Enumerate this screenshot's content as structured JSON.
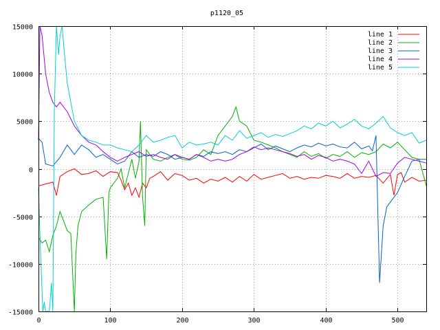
{
  "chart_data": {
    "type": "line",
    "title": "p1120_05",
    "xlabel": "",
    "ylabel": "",
    "xlim": [
      0,
      540
    ],
    "ylim": [
      -15000,
      15000
    ],
    "xticks": [
      0,
      100,
      200,
      300,
      400,
      500
    ],
    "yticks": [
      -15000,
      -10000,
      -5000,
      0,
      5000,
      10000,
      15000
    ],
    "grid": true,
    "legend_position": "top-right",
    "series": [
      {
        "name": "line 1",
        "color": "#ff0000",
        "x": [
          0,
          10,
          20,
          25,
          30,
          40,
          50,
          60,
          70,
          80,
          90,
          100,
          110,
          115,
          120,
          125,
          130,
          135,
          140,
          145,
          150,
          155,
          160,
          170,
          180,
          190,
          200,
          210,
          220,
          230,
          240,
          250,
          260,
          270,
          280,
          290,
          300,
          310,
          320,
          330,
          340,
          350,
          360,
          370,
          380,
          390,
          400,
          410,
          420,
          430,
          440,
          450,
          460,
          470,
          480,
          490,
          495,
          500,
          505,
          510,
          520,
          530,
          540
        ],
        "y": [
          -1800,
          -1600,
          -1400,
          -2800,
          -800,
          -300,
          0,
          -600,
          -500,
          -200,
          -800,
          -300,
          -400,
          -1200,
          -2200,
          -1500,
          -2800,
          -2000,
          -3000,
          -1500,
          -2000,
          -1000,
          -800,
          -300,
          -1200,
          -500,
          -700,
          -1200,
          -1000,
          -1500,
          -1100,
          -1300,
          -900,
          -1400,
          -800,
          -1300,
          -600,
          -1100,
          -900,
          -700,
          -500,
          -1000,
          -800,
          -1100,
          -900,
          -1000,
          -700,
          -800,
          -1000,
          -500,
          -1000,
          -800,
          -900,
          -700,
          -1500,
          -600,
          -2800,
          -600,
          -400,
          -1400,
          -900,
          -1300,
          -1200
        ]
      },
      {
        "name": "line 2",
        "color": "#00b000",
        "x": [
          0,
          5,
          10,
          15,
          20,
          25,
          30,
          35,
          40,
          45,
          50,
          52,
          55,
          60,
          70,
          80,
          90,
          95,
          98,
          100,
          110,
          115,
          120,
          130,
          135,
          140,
          142,
          145,
          148,
          150,
          155,
          160,
          170,
          180,
          190,
          200,
          210,
          220,
          230,
          240,
          250,
          260,
          270,
          275,
          280,
          290,
          300,
          310,
          320,
          330,
          340,
          350,
          360,
          370,
          380,
          390,
          400,
          410,
          420,
          430,
          440,
          450,
          460,
          470,
          480,
          490,
          500,
          510,
          520,
          530,
          540
        ],
        "y": [
          -7200,
          -7800,
          -7500,
          -8700,
          -7000,
          -6000,
          -4500,
          -5500,
          -6500,
          -6800,
          -15000,
          -9000,
          -6000,
          -4500,
          -3800,
          -3200,
          -3000,
          -9500,
          -2500,
          -2000,
          -1000,
          0,
          -2000,
          1000,
          -1000,
          800,
          5000,
          -3000,
          -6000,
          2000,
          1500,
          1000,
          800,
          1200,
          1500,
          1000,
          900,
          1200,
          2000,
          1500,
          3500,
          4500,
          5500,
          6500,
          5000,
          4500,
          3000,
          2800,
          2500,
          2200,
          1800,
          1500,
          1200,
          1800,
          1300,
          1600,
          1100,
          1500,
          1300,
          1800,
          1200,
          1700,
          1500,
          1800,
          2600,
          2200,
          2800,
          2000,
          1200,
          1000,
          -1800
        ]
      },
      {
        "name": "line 3",
        "color": "#0060d0",
        "x": [
          0,
          5,
          10,
          20,
          30,
          40,
          50,
          60,
          70,
          80,
          90,
          100,
          110,
          120,
          130,
          140,
          150,
          160,
          170,
          180,
          190,
          200,
          210,
          220,
          230,
          240,
          250,
          260,
          270,
          280,
          290,
          300,
          310,
          320,
          330,
          340,
          350,
          360,
          370,
          380,
          390,
          400,
          410,
          420,
          430,
          440,
          450,
          460,
          465,
          470,
          475,
          480,
          485,
          490,
          500,
          510,
          520,
          530,
          540
        ],
        "y": [
          3200,
          2800,
          500,
          300,
          1200,
          2500,
          1500,
          2500,
          2000,
          1200,
          1500,
          1000,
          500,
          800,
          1800,
          1200,
          1500,
          1300,
          1800,
          1500,
          1000,
          1200,
          1000,
          1500,
          1300,
          1800,
          1600,
          1800,
          1500,
          2000,
          1800,
          2200,
          2600,
          2000,
          2400,
          2100,
          1800,
          2200,
          2500,
          2300,
          2700,
          2400,
          2600,
          2300,
          2200,
          2800,
          2100,
          2400,
          1900,
          3500,
          -12000,
          -6000,
          -4000,
          -3500,
          -2500,
          -800,
          800,
          1000,
          1000
        ]
      },
      {
        "name": "line 4",
        "color": "#a000e0",
        "x": [
          0,
          2,
          5,
          10,
          15,
          20,
          25,
          30,
          40,
          50,
          60,
          70,
          80,
          90,
          100,
          110,
          120,
          130,
          140,
          150,
          160,
          170,
          180,
          190,
          200,
          210,
          220,
          230,
          240,
          250,
          260,
          270,
          280,
          290,
          300,
          310,
          320,
          330,
          340,
          350,
          360,
          370,
          380,
          390,
          400,
          410,
          420,
          430,
          440,
          450,
          460,
          470,
          480,
          490,
          500,
          510,
          520,
          530,
          540
        ],
        "y": [
          3000,
          15000,
          14000,
          10000,
          8000,
          7000,
          6500,
          7000,
          6000,
          4500,
          3500,
          2800,
          2500,
          1800,
          1200,
          800,
          1200,
          1500,
          1800,
          1300,
          1500,
          1200,
          1000,
          1500,
          1200,
          1000,
          1500,
          1200,
          800,
          1000,
          800,
          1000,
          1500,
          1800,
          2300,
          2000,
          2200,
          2000,
          1800,
          1600,
          1300,
          1500,
          1000,
          1400,
          1200,
          800,
          1000,
          800,
          500,
          -500,
          800,
          -800,
          -400,
          -500,
          600,
          1200,
          1000,
          800,
          600
        ]
      },
      {
        "name": "line 5",
        "color": "#00d0d0",
        "x": [
          0,
          3,
          6,
          8,
          10,
          12,
          15,
          18,
          20,
          22,
          25,
          28,
          30,
          33,
          35,
          40,
          50,
          60,
          70,
          80,
          90,
          100,
          110,
          120,
          130,
          140,
          150,
          160,
          170,
          180,
          190,
          200,
          210,
          220,
          230,
          240,
          250,
          260,
          270,
          280,
          290,
          300,
          310,
          320,
          330,
          340,
          350,
          360,
          370,
          380,
          390,
          400,
          410,
          420,
          430,
          440,
          450,
          460,
          470,
          480,
          490,
          500,
          510,
          520,
          530,
          540
        ],
        "y": [
          -2000,
          -9000,
          -15000,
          -14000,
          -15000,
          -15000,
          -15000,
          -12000,
          -15000,
          6000,
          15000,
          12000,
          14000,
          15000,
          13000,
          9000,
          5000,
          3500,
          3000,
          2800,
          2500,
          2500,
          2200,
          2000,
          1800,
          2500,
          3500,
          2800,
          3000,
          3300,
          3500,
          2200,
          2800,
          2500,
          2600,
          2800,
          2500,
          3500,
          3000,
          4000,
          3200,
          3500,
          3800,
          3300,
          3600,
          3400,
          3700,
          4000,
          4500,
          4200,
          4800,
          4500,
          5000,
          4300,
          4700,
          5200,
          4500,
          4200,
          4800,
          5500,
          4300,
          3800,
          3500,
          3800,
          2700,
          3000
        ]
      }
    ]
  }
}
